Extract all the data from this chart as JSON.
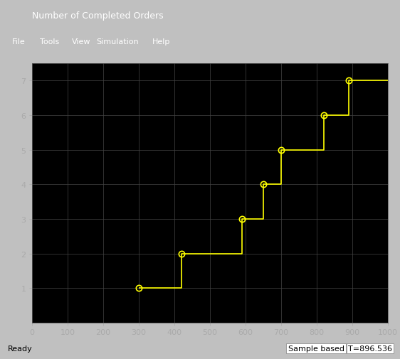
{
  "title": "Number of Completed Orders",
  "bg_color": "#000000",
  "fig_bg_color": "#1e1e1e",
  "line_color": "#ffff00",
  "marker_color": "#ffff00",
  "grid_color": "#444444",
  "text_color": "#ffffff",
  "tick_color": "#aaaaaa",
  "xlim": [
    0,
    1000
  ],
  "ylim": [
    0,
    7.5
  ],
  "xticks": [
    0,
    100,
    200,
    300,
    400,
    500,
    600,
    700,
    800,
    900,
    1000
  ],
  "yticks": [
    1,
    2,
    3,
    4,
    5,
    6,
    7
  ],
  "event_x": [
    300,
    420,
    590,
    650,
    700,
    820,
    890
  ],
  "event_y": [
    1,
    2,
    3,
    4,
    5,
    6,
    7
  ],
  "x_end": 1000,
  "status_bar_text": "Ready",
  "sample_text": "Sample based",
  "time_text": "T=896.536"
}
